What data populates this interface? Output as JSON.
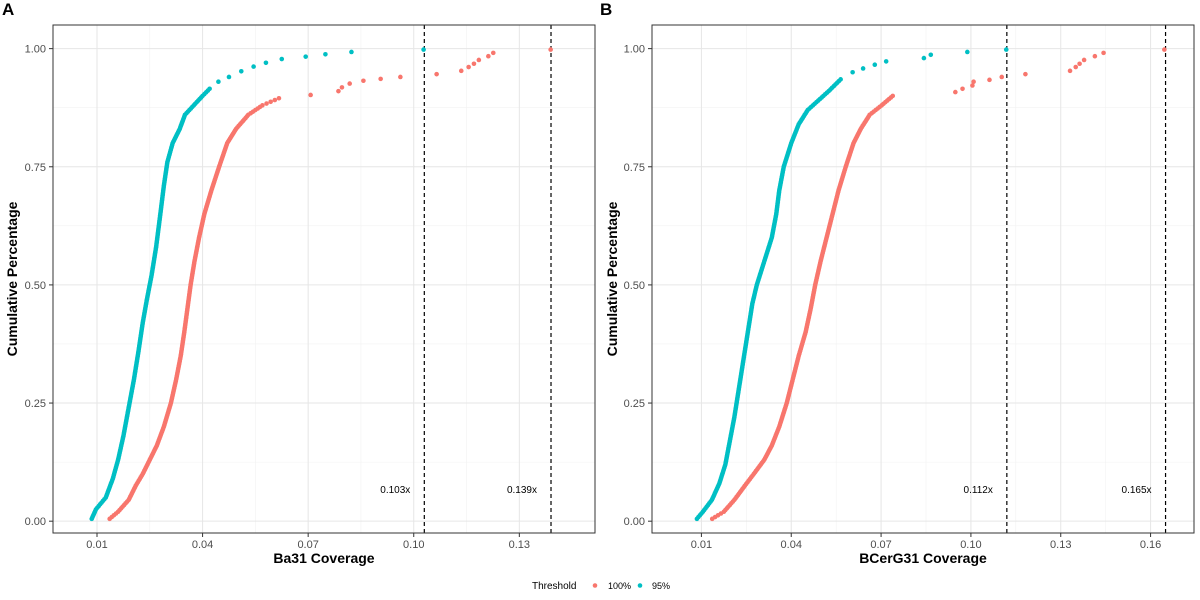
{
  "chart_data": [
    {
      "type": "scatter",
      "panel_label": "A",
      "xlabel": "Ba31 Coverage",
      "ylabel": "Cumulative Percentage",
      "xlim": [
        -0.0025,
        0.1515
      ],
      "ylim": [
        -0.025,
        1.05
      ],
      "x_ticks": [
        0.01,
        0.04,
        0.07,
        0.1,
        0.13
      ],
      "x_tick_labels": [
        "0.01",
        "0.04",
        "0.07",
        "0.10",
        "0.13"
      ],
      "y_ticks": [
        0,
        0.25,
        0.5,
        0.75,
        1
      ],
      "y_tick_labels": [
        "0.00",
        "0.25",
        "0.50",
        "0.75",
        "1.00"
      ],
      "grid": true,
      "vlines": [
        {
          "x": 0.103,
          "label": "0.103x"
        },
        {
          "x": 0.139,
          "label": "0.139x"
        }
      ],
      "series": [
        {
          "name": "100%",
          "color": "#F8766D",
          "anchors": [
            [
              0.0136,
              0.005
            ],
            [
              0.016,
              0.02
            ],
            [
              0.019,
              0.045
            ],
            [
              0.021,
              0.075
            ],
            [
              0.023,
              0.1
            ],
            [
              0.025,
              0.13
            ],
            [
              0.027,
              0.16
            ],
            [
              0.029,
              0.2
            ],
            [
              0.031,
              0.25
            ],
            [
              0.0325,
              0.3
            ],
            [
              0.0338,
              0.35
            ],
            [
              0.0348,
              0.4
            ],
            [
              0.0357,
              0.45
            ],
            [
              0.0366,
              0.5
            ],
            [
              0.0377,
              0.55
            ],
            [
              0.039,
              0.6
            ],
            [
              0.0405,
              0.65
            ],
            [
              0.0425,
              0.7
            ],
            [
              0.0447,
              0.75
            ],
            [
              0.047,
              0.8
            ],
            [
              0.0495,
              0.83
            ],
            [
              0.053,
              0.86
            ],
            [
              0.057,
              0.88
            ],
            [
              0.0617,
              0.895
            ]
          ],
          "points": [
            [
              0.0707,
              0.902
            ],
            [
              0.0786,
              0.91
            ],
            [
              0.0796,
              0.918
            ],
            [
              0.0818,
              0.926
            ],
            [
              0.0857,
              0.932
            ],
            [
              0.0906,
              0.936
            ],
            [
              0.0962,
              0.94
            ],
            [
              0.1065,
              0.946
            ],
            [
              0.1135,
              0.953
            ],
            [
              0.1156,
              0.961
            ],
            [
              0.1171,
              0.968
            ],
            [
              0.1185,
              0.976
            ],
            [
              0.1212,
              0.984
            ],
            [
              0.1226,
              0.991
            ],
            [
              0.1389,
              0.998
            ]
          ]
        },
        {
          "name": "95%",
          "color": "#00BFC4",
          "anchors": [
            [
              0.0085,
              0.005
            ],
            [
              0.0097,
              0.025
            ],
            [
              0.0125,
              0.05
            ],
            [
              0.0145,
              0.09
            ],
            [
              0.016,
              0.13
            ],
            [
              0.0175,
              0.18
            ],
            [
              0.019,
              0.24
            ],
            [
              0.0205,
              0.3
            ],
            [
              0.0218,
              0.36
            ],
            [
              0.023,
              0.42
            ],
            [
              0.0242,
              0.47
            ],
            [
              0.0255,
              0.52
            ],
            [
              0.0268,
              0.58
            ],
            [
              0.028,
              0.65
            ],
            [
              0.029,
              0.71
            ],
            [
              0.03,
              0.76
            ],
            [
              0.0315,
              0.8
            ],
            [
              0.0335,
              0.83
            ],
            [
              0.035,
              0.86
            ],
            [
              0.0375,
              0.88
            ],
            [
              0.04,
              0.9
            ],
            [
              0.042,
              0.915
            ]
          ],
          "points": [
            [
              0.0445,
              0.93
            ],
            [
              0.0475,
              0.94
            ],
            [
              0.051,
              0.952
            ],
            [
              0.0545,
              0.962
            ],
            [
              0.058,
              0.97
            ],
            [
              0.0625,
              0.978
            ],
            [
              0.0693,
              0.983
            ],
            [
              0.0749,
              0.988
            ],
            [
              0.0823,
              0.993
            ],
            [
              0.1028,
              0.998
            ]
          ]
        }
      ]
    },
    {
      "type": "scatter",
      "panel_label": "B",
      "xlabel": "BCerG31 Coverage",
      "ylabel": "Cumulative Percentage",
      "xlim": [
        -0.0065,
        0.1745
      ],
      "ylim": [
        -0.025,
        1.05
      ],
      "x_ticks": [
        0.01,
        0.04,
        0.07,
        0.1,
        0.13,
        0.16
      ],
      "x_tick_labels": [
        "0.01",
        "0.04",
        "0.07",
        "0.10",
        "0.13",
        "0.16"
      ],
      "y_ticks": [
        0,
        0.25,
        0.5,
        0.75,
        1
      ],
      "y_tick_labels": [
        "0.00",
        "0.25",
        "0.50",
        "0.75",
        "1.00"
      ],
      "grid": true,
      "vlines": [
        {
          "x": 0.112,
          "label": "0.112x"
        },
        {
          "x": 0.165,
          "label": "0.165x"
        }
      ],
      "series": [
        {
          "name": "100%",
          "color": "#F8766D",
          "anchors": [
            [
              0.0136,
              0.005
            ],
            [
              0.0175,
              0.02
            ],
            [
              0.021,
              0.045
            ],
            [
              0.0245,
              0.075
            ],
            [
              0.0275,
              0.1
            ],
            [
              0.031,
              0.13
            ],
            [
              0.0335,
              0.16
            ],
            [
              0.036,
              0.2
            ],
            [
              0.0385,
              0.25
            ],
            [
              0.0405,
              0.3
            ],
            [
              0.0425,
              0.35
            ],
            [
              0.0448,
              0.4
            ],
            [
              0.0465,
              0.45
            ],
            [
              0.048,
              0.5
            ],
            [
              0.0498,
              0.55
            ],
            [
              0.0518,
              0.6
            ],
            [
              0.0538,
              0.65
            ],
            [
              0.0558,
              0.7
            ],
            [
              0.0582,
              0.75
            ],
            [
              0.0608,
              0.8
            ],
            [
              0.0632,
              0.83
            ],
            [
              0.0662,
              0.86
            ],
            [
              0.0702,
              0.88
            ],
            [
              0.0739,
              0.9
            ]
          ],
          "points": [
            [
              0.0948,
              0.908
            ],
            [
              0.0972,
              0.915
            ],
            [
              0.1005,
              0.922
            ],
            [
              0.1009,
              0.93
            ],
            [
              0.1062,
              0.934
            ],
            [
              0.1103,
              0.94
            ],
            [
              0.1182,
              0.946
            ],
            [
              0.1331,
              0.953
            ],
            [
              0.135,
              0.961
            ],
            [
              0.1363,
              0.968
            ],
            [
              0.1378,
              0.976
            ],
            [
              0.1414,
              0.984
            ],
            [
              0.1443,
              0.991
            ],
            [
              0.1646,
              0.998
            ]
          ]
        },
        {
          "name": "95%",
          "color": "#00BFC4",
          "anchors": [
            [
              0.0085,
              0.005
            ],
            [
              0.0105,
              0.02
            ],
            [
              0.0135,
              0.045
            ],
            [
              0.016,
              0.08
            ],
            [
              0.018,
              0.12
            ],
            [
              0.0195,
              0.17
            ],
            [
              0.021,
              0.22
            ],
            [
              0.0225,
              0.28
            ],
            [
              0.024,
              0.34
            ],
            [
              0.0255,
              0.4
            ],
            [
              0.027,
              0.46
            ],
            [
              0.0285,
              0.5
            ],
            [
              0.031,
              0.55
            ],
            [
              0.0335,
              0.6
            ],
            [
              0.035,
              0.65
            ],
            [
              0.036,
              0.7
            ],
            [
              0.0375,
              0.75
            ],
            [
              0.04,
              0.8
            ],
            [
              0.0425,
              0.84
            ],
            [
              0.0455,
              0.87
            ],
            [
              0.049,
              0.89
            ],
            [
              0.0525,
              0.91
            ],
            [
              0.0565,
              0.935
            ]
          ],
          "points": [
            [
              0.0605,
              0.95
            ],
            [
              0.064,
              0.958
            ],
            [
              0.0679,
              0.966
            ],
            [
              0.0717,
              0.973
            ],
            [
              0.0843,
              0.98
            ],
            [
              0.0866,
              0.987
            ],
            [
              0.0988,
              0.993
            ],
            [
              0.1118,
              0.998
            ]
          ]
        }
      ]
    }
  ],
  "legend": {
    "title": "Threshold",
    "placement": "bottom",
    "entries": [
      {
        "label": "100%",
        "color": "#F8766D"
      },
      {
        "label": "95%",
        "color": "#00BFC4"
      }
    ]
  }
}
